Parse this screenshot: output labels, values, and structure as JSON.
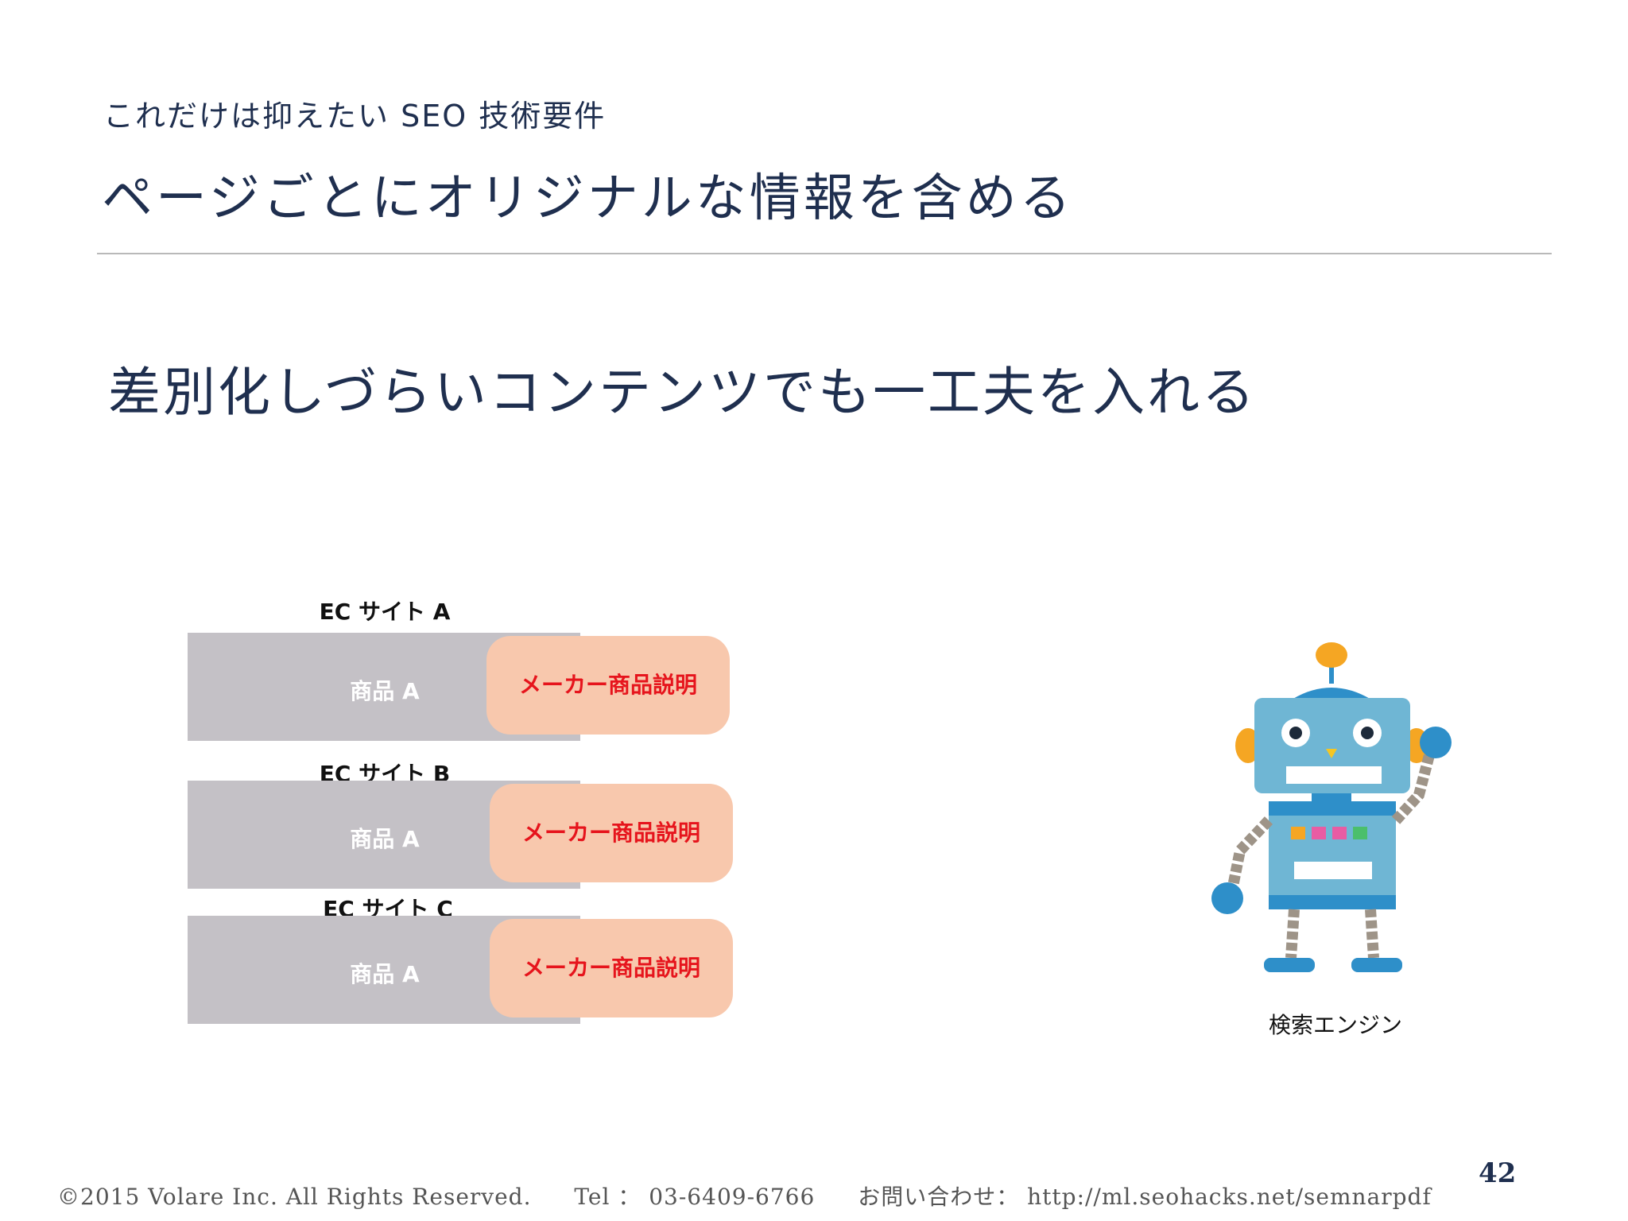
{
  "header": {
    "subtitle": "これだけは抑えたい SEO 技術要件",
    "title": "ページごとにオリジナルな情報を含める"
  },
  "main": {
    "heading": "差別化しづらいコンテンツでも一工夫を入れる",
    "sites": [
      {
        "label": "EC サイト A",
        "product": "商品 A",
        "callout": "メーカー商品説明"
      },
      {
        "label": "EC サイト B",
        "product": "商品 A",
        "callout": "メーカー商品説明"
      },
      {
        "label": "EC サイト C",
        "product": "商品 A",
        "callout": "メーカー商品説明"
      }
    ],
    "robot_caption": "検索エンジン"
  },
  "footer": {
    "copyright": "©2015 Volare Inc. All Rights Reserved.",
    "tel": "Tel ： 03-6409-6766",
    "contact": "お問い合わせ： http://ml.seohacks.net/semnarpdf",
    "page_number": "42"
  },
  "colors": {
    "title": "#1f2f4f",
    "bar": "#c4c1c6",
    "callout_bg": "#f8c8ad",
    "callout_text": "#e6141c",
    "robot_body": "#6fb6d4",
    "robot_accent": "#2e8fc9"
  }
}
